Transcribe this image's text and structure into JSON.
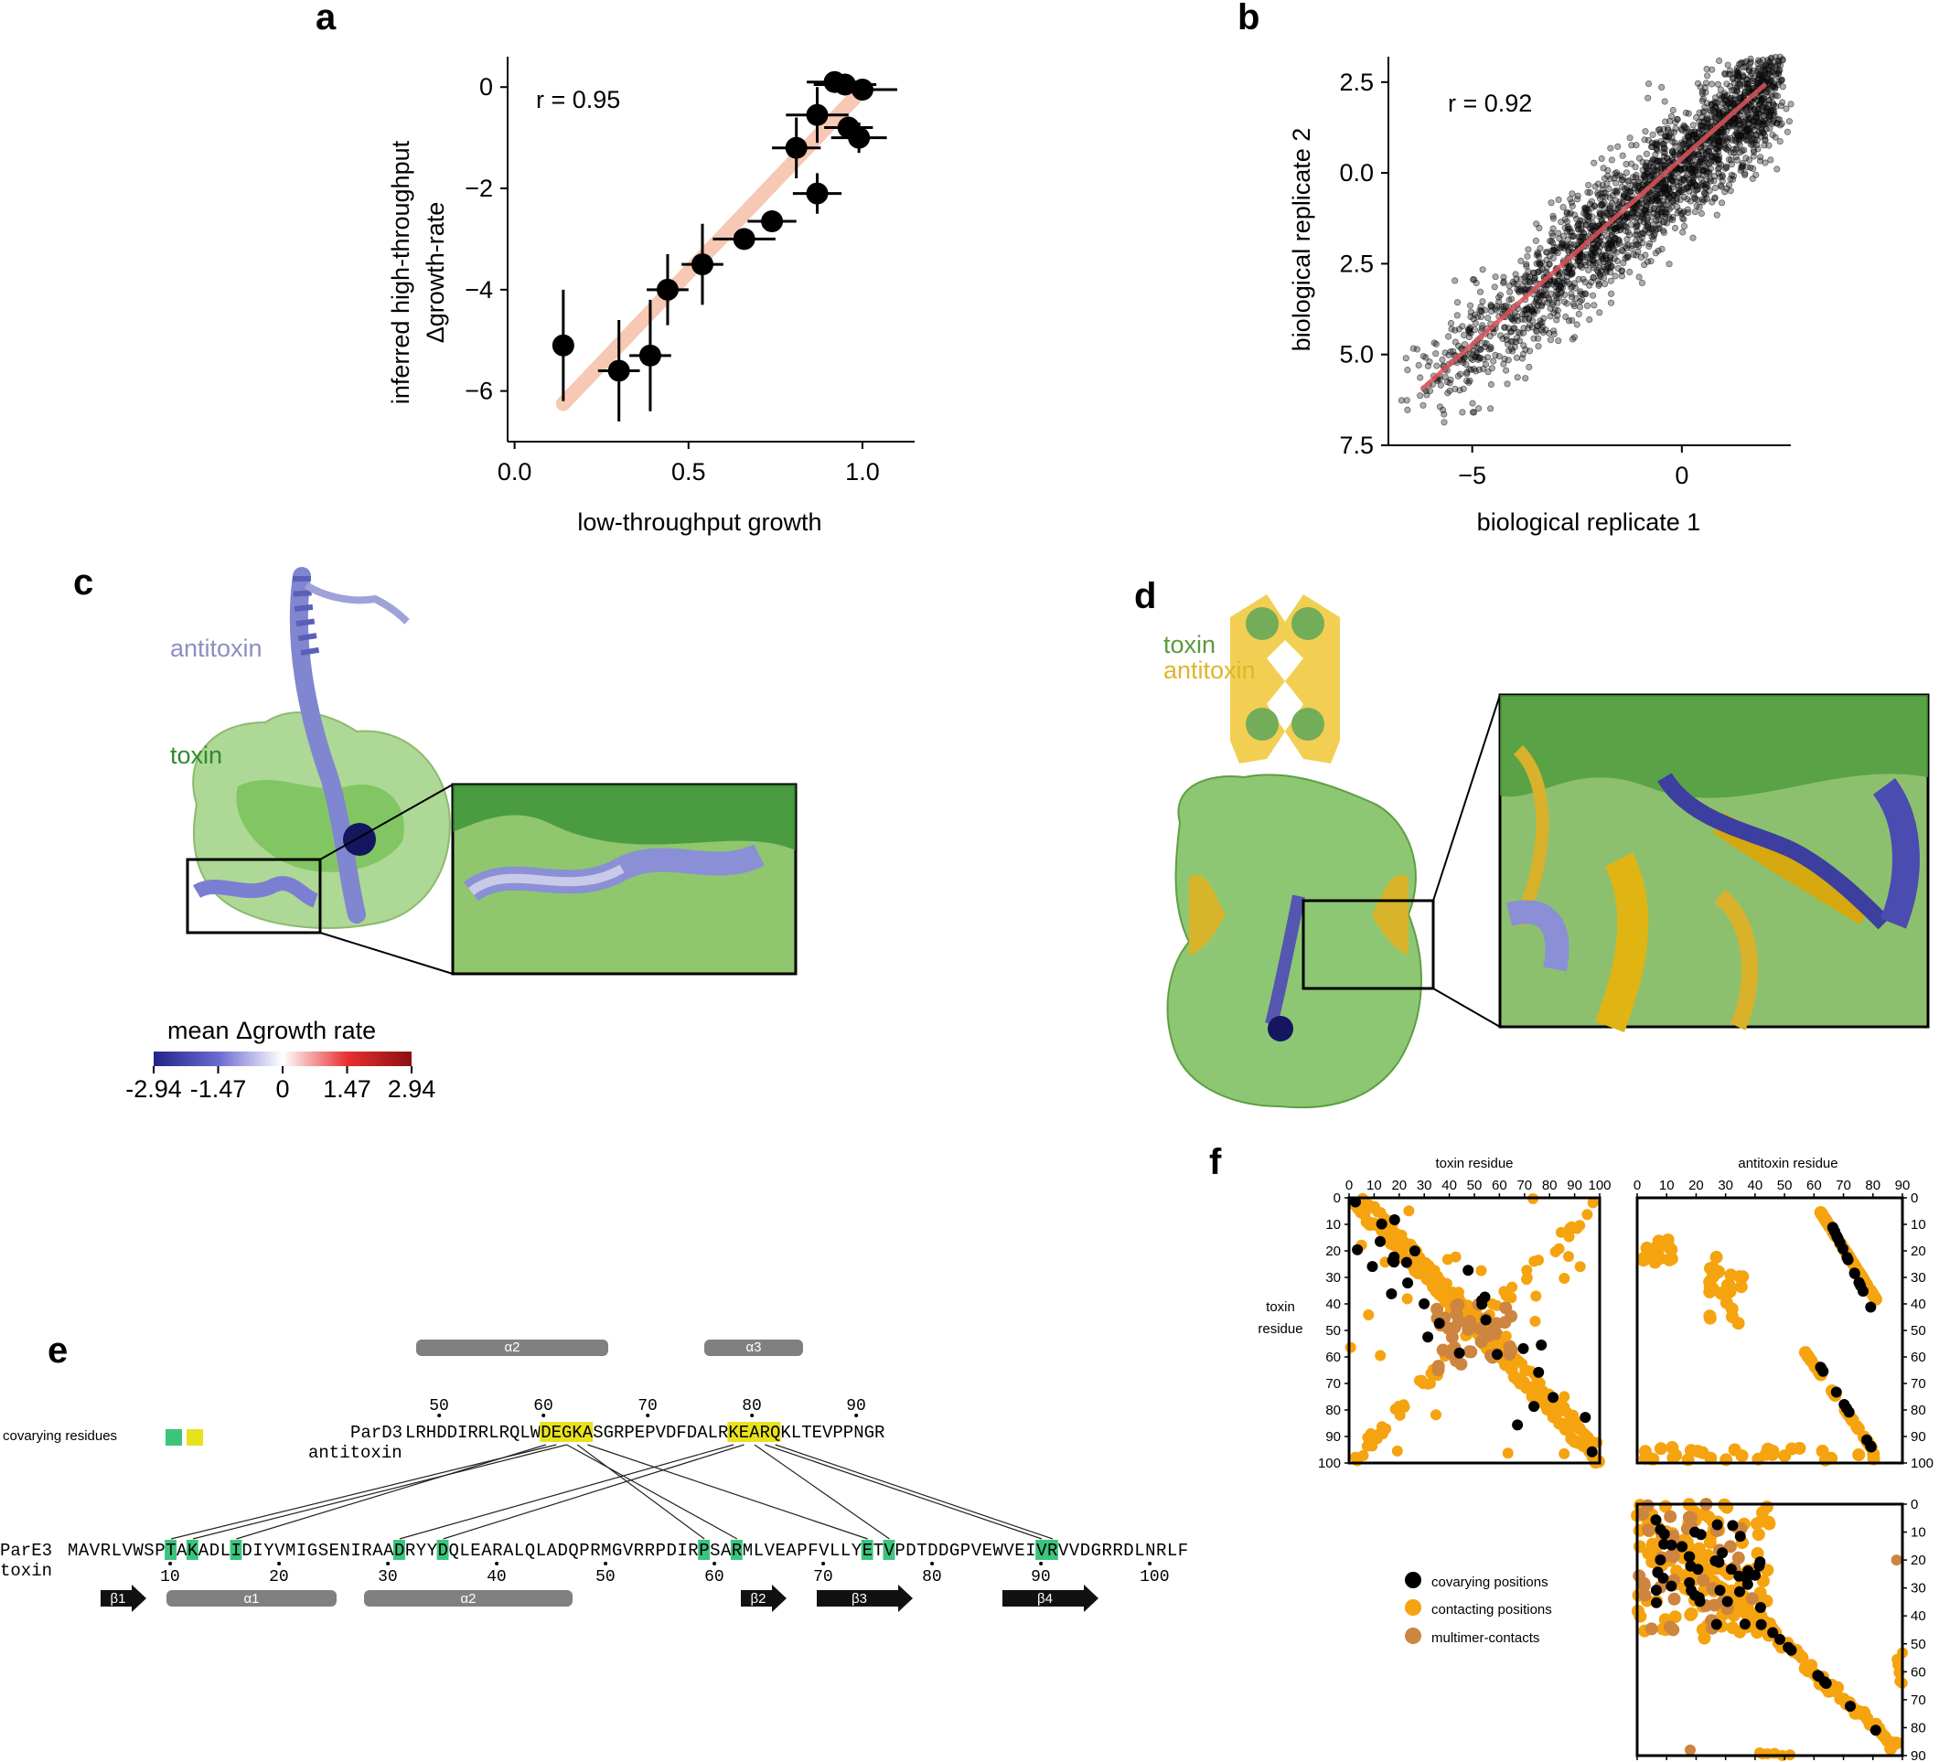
{
  "panels": {
    "a": {
      "label": "a"
    },
    "b": {
      "label": "b"
    },
    "c": {
      "label": "c",
      "antitoxin_label": "antitoxin",
      "toxin_label": "toxin"
    },
    "d": {
      "label": "d",
      "toxin_label": "toxin",
      "antitoxin_label": "antitoxin"
    },
    "e": {
      "label": "e"
    },
    "f": {
      "label": "f"
    }
  },
  "chart_data": [
    {
      "panel": "a",
      "type": "scatter",
      "annotation": "r = 0.95",
      "xlabel": "low-throughput growth",
      "ylabel_lines": [
        "inferred high-throughput",
        "Δgrowth-rate"
      ],
      "xlim": [
        -0.02,
        1.15
      ],
      "ylim": [
        -7,
        0.6
      ],
      "xticks": [
        0.0,
        0.5,
        1.0
      ],
      "xtick_labels": [
        "0.0",
        "0.5",
        "1.0"
      ],
      "yticks": [
        0,
        -2,
        -4,
        -6
      ],
      "ytick_labels": [
        "0",
        "−2",
        "−4",
        "−6"
      ],
      "fit_color": "#f7c8b3",
      "fit_line": {
        "x": [
          0.14,
          1.0
        ],
        "y": [
          -6.25,
          -0.05
        ]
      },
      "points": [
        {
          "x": 0.14,
          "y": -5.1,
          "xerr": 0.0,
          "yerr": 1.1
        },
        {
          "x": 0.3,
          "y": -5.6,
          "xerr": 0.06,
          "yerr": 1.0
        },
        {
          "x": 0.39,
          "y": -5.3,
          "xerr": 0.06,
          "yerr": 1.1
        },
        {
          "x": 0.44,
          "y": -4.0,
          "xerr": 0.06,
          "yerr": 0.7
        },
        {
          "x": 0.54,
          "y": -3.5,
          "xerr": 0.06,
          "yerr": 0.8
        },
        {
          "x": 0.66,
          "y": -3.0,
          "xerr": 0.09,
          "yerr": 0.0
        },
        {
          "x": 0.74,
          "y": -2.65,
          "xerr": 0.07,
          "yerr": 0.0
        },
        {
          "x": 0.81,
          "y": -1.2,
          "xerr": 0.07,
          "yerr": 0.6
        },
        {
          "x": 0.87,
          "y": -2.1,
          "xerr": 0.07,
          "yerr": 0.4
        },
        {
          "x": 0.87,
          "y": -0.55,
          "xerr": 0.09,
          "yerr": 0.55
        },
        {
          "x": 0.92,
          "y": 0.1,
          "xerr": 0.08,
          "yerr": 0.0
        },
        {
          "x": 0.95,
          "y": 0.05,
          "xerr": 0.09,
          "yerr": 0.0
        },
        {
          "x": 0.96,
          "y": -0.8,
          "xerr": 0.07,
          "yerr": 0.0
        },
        {
          "x": 0.99,
          "y": -1.0,
          "xerr": 0.08,
          "yerr": 0.3
        },
        {
          "x": 1.0,
          "y": -0.05,
          "xerr": 0.1,
          "yerr": 0.0
        }
      ]
    },
    {
      "panel": "b",
      "type": "scatter",
      "annotation": "r = 0.92",
      "xlabel": "biological replicate 1",
      "ylabel": "biological replicate 2",
      "xlim": [
        -7,
        2.6
      ],
      "ylim": [
        -7.5,
        3.2
      ],
      "xticks": [
        -5,
        0
      ],
      "xtick_labels": [
        "−5",
        "0"
      ],
      "yticks": [
        2.5,
        0.0,
        -2.5,
        -5.0,
        -7.5
      ],
      "ytick_labels": [
        "2.5",
        "0.0",
        "2.5",
        "5.0",
        "7.5"
      ],
      "fit_color": "#e0555a",
      "fit_line": {
        "x": [
          -6.2,
          2.0
        ],
        "y": [
          -5.95,
          2.45
        ]
      },
      "cloud": {
        "slope": 1.0,
        "intercept": 0.2,
        "x_range": [
          -6.5,
          2.2
        ],
        "spread": 0.8,
        "n_points": 2400
      }
    },
    {
      "panel": "f",
      "type": "heatmap",
      "subtitle_toxin": "toxin residue",
      "subtitle_antitoxin": "antitoxin residue",
      "ylabel_lines": [
        "toxin",
        "residue"
      ],
      "toxin_ticks": [
        0,
        10,
        20,
        30,
        40,
        50,
        60,
        70,
        80,
        90,
        100
      ],
      "antitoxin_ticks": [
        0,
        10,
        20,
        30,
        40,
        50,
        60,
        70,
        80,
        90
      ],
      "legend": [
        {
          "label": "covarying positions",
          "color": "#000000"
        },
        {
          "label": "contacting positions",
          "color": "#f5a30f"
        },
        {
          "label": "multimer-contacts",
          "color": "#cd853f"
        }
      ]
    }
  ],
  "colorbar": {
    "title": "mean Δgrowth rate",
    "ticks": [
      "-2.94",
      "-1.47",
      "0",
      "1.47",
      "2.94"
    ],
    "colors": [
      "#23238a",
      "#6a6ad0",
      "#ffffff",
      "#e83030",
      "#8b1010"
    ]
  },
  "sequence": {
    "covarying_label": "covarying residues",
    "covary_colors": {
      "green": "#3cc47d",
      "yellow": "#e8e21e"
    },
    "antitoxin_name": "ParD3",
    "antitoxin_role": "antitoxin",
    "antitoxin_seq": "LRHDDIRRLRQLWDEGKASGRPEPVDFDALRKEARQKLTEVPPNGR",
    "antitoxin_start": 47,
    "antitoxin_numbers": [
      "50",
      "60",
      "70",
      "80",
      "90"
    ],
    "toxin_name": "ParE3",
    "toxin_role": "toxin",
    "toxin_seq": "MAVRLVWSPTAKADLIDIYVMIGSENIRAADRYYDQLEARALQLADQPRMGVRRPDIRPSARMLVEAPFVLLYETVPDTDDGPVEWVEIVRVVDGRRDLNRLF",
    "toxin_numbers": [
      "10",
      "20",
      "30",
      "40",
      "50",
      "60",
      "70",
      "80",
      "90",
      "100"
    ],
    "antitoxin_ss": [
      {
        "label": "α2"
      },
      {
        "label": "α3"
      }
    ],
    "toxin_ss": [
      {
        "label": "β1",
        "kind": "strand"
      },
      {
        "label": "α1",
        "kind": "helix"
      },
      {
        "label": "α2",
        "kind": "helix"
      },
      {
        "label": "β2",
        "kind": "strand"
      },
      {
        "label": "β3",
        "kind": "strand"
      },
      {
        "label": "β4",
        "kind": "strand"
      }
    ]
  }
}
